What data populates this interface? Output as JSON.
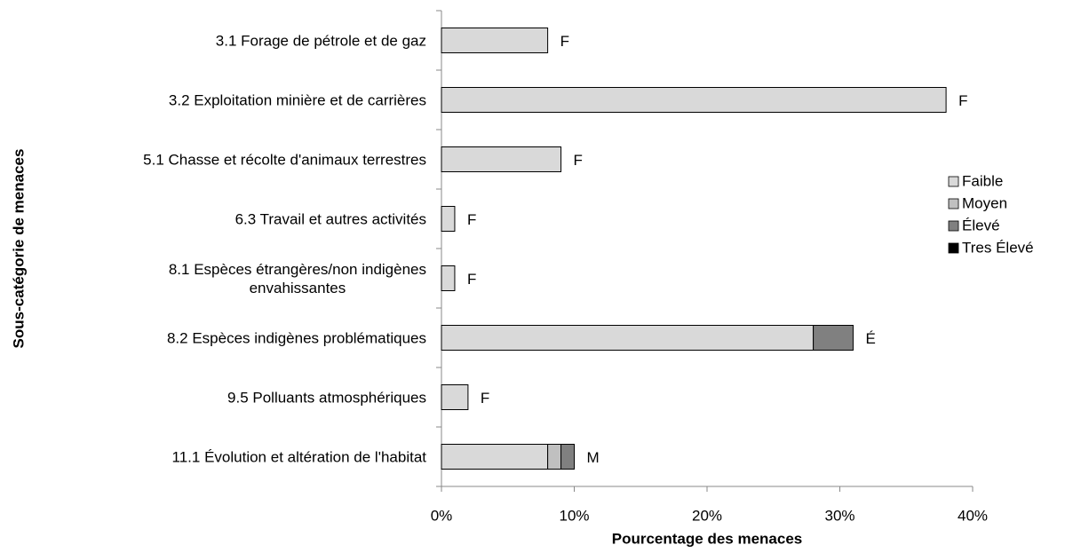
{
  "chart_data": {
    "type": "bar",
    "orientation": "horizontal",
    "stacked": true,
    "xlabel": "Pourcentage des menaces",
    "ylabel": "Sous-catégorie de menaces",
    "categories": [
      "3.1 Forage de pétrole et de gaz",
      "3.2 Exploitation minière et de carrières",
      "5.1 Chasse et récolte d'animaux terrestres",
      "6.3 Travail et autres activités",
      "8.1 Espèces étrangères/non indigènes\nenvahissantes",
      "8.2 Espèces indigènes problématiques",
      "9.5 Polluants atmosphériques",
      "11.1 Évolution et altération de l'habitat"
    ],
    "series": [
      {
        "name": "Faible",
        "color": "#d9d9d9",
        "values": [
          8,
          38,
          9,
          1,
          1,
          28,
          2,
          8
        ]
      },
      {
        "name": "Moyen",
        "color": "#c0c0c0",
        "values": [
          0,
          0,
          0,
          0,
          0,
          0,
          0,
          1
        ]
      },
      {
        "name": "Élevé",
        "color": "#808080",
        "values": [
          0,
          0,
          0,
          0,
          0,
          3,
          0,
          1
        ]
      },
      {
        "name": "Tres Élevé",
        "color": "#000000",
        "values": [
          0,
          0,
          0,
          0,
          0,
          0,
          0,
          0
        ]
      }
    ],
    "annotations": [
      "F",
      "F",
      "F",
      "F",
      "F",
      "É",
      "F",
      "M"
    ],
    "xlim": [
      0,
      40
    ],
    "xticks": [
      {
        "value": 0,
        "label": "0%"
      },
      {
        "value": 10,
        "label": "10%"
      },
      {
        "value": 20,
        "label": "20%"
      },
      {
        "value": 30,
        "label": "30%"
      },
      {
        "value": 40,
        "label": "40%"
      }
    ],
    "legend": "right"
  }
}
